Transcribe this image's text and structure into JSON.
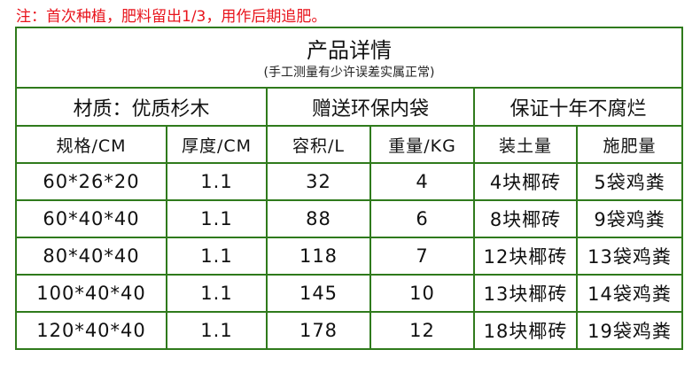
{
  "note": "注：首次种植，肥料留出1/3，用作后期追肥。",
  "title": "产品详情",
  "subtitle": "(手工测量有少许误差实属正常)",
  "sections": [
    "材质：优质杉木",
    "赠送环保内袋",
    "保证十年不腐烂"
  ],
  "columns": [
    "规格/CM",
    "厚度/CM",
    "容积/L",
    "重量/KG",
    "装土量",
    "施肥量"
  ],
  "rows": [
    [
      "60*26*20",
      "1.1",
      "32",
      "4",
      "4块椰砖",
      "5袋鸡粪"
    ],
    [
      "60*40*40",
      "1.1",
      "88",
      "6",
      "8块椰砖",
      "9袋鸡粪"
    ],
    [
      "80*40*40",
      "1.1",
      "118",
      "7",
      "12块椰砖",
      "13袋鸡粪"
    ],
    [
      "100*40*40",
      "1.1",
      "145",
      "10",
      "13块椰砖",
      "14袋鸡粪"
    ],
    [
      "120*40*40",
      "1.1",
      "178",
      "12",
      "18块椰砖",
      "19袋鸡粪"
    ]
  ],
  "colors": {
    "note": "#e8141c",
    "border": "#2f7a1c"
  }
}
